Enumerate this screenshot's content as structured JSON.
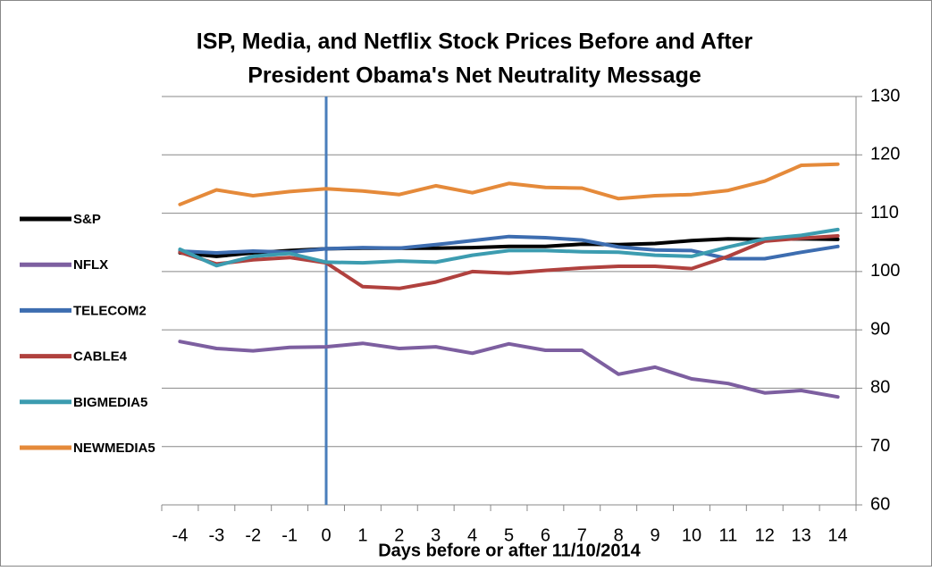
{
  "chart_data": {
    "type": "line",
    "title": [
      "ISP, Media, and Netflix Stock Prices Before and After",
      "President Obama's Net Neutrality Message"
    ],
    "x_label": "Days before or after 11/10/2014",
    "categories": [
      -4,
      -3,
      -2,
      -1,
      0,
      1,
      2,
      3,
      4,
      5,
      6,
      7,
      8,
      9,
      10,
      11,
      12,
      13,
      14
    ],
    "series": [
      {
        "name": "S&P",
        "color": "#000000",
        "values": [
          103.2,
          102.6,
          103.2,
          103.6,
          103.9,
          104.0,
          104.0,
          104.0,
          104.1,
          104.3,
          104.3,
          104.7,
          104.6,
          104.8,
          105.3,
          105.6,
          105.5,
          105.6,
          105.5
        ]
      },
      {
        "name": "NFLX",
        "color": "#7d5fa0",
        "values": [
          88.0,
          86.8,
          86.4,
          87.0,
          87.1,
          87.7,
          86.8,
          87.1,
          86.0,
          87.6,
          86.5,
          86.5,
          82.4,
          83.6,
          81.6,
          80.8,
          79.2,
          79.6,
          78.5
        ]
      },
      {
        "name": "TELECOM2",
        "color": "#3d6db0",
        "values": [
          103.5,
          103.2,
          103.5,
          103.3,
          103.9,
          104.1,
          104.0,
          104.6,
          105.3,
          106.0,
          105.8,
          105.4,
          104.2,
          103.7,
          103.6,
          102.2,
          102.2,
          103.3,
          104.3
        ]
      },
      {
        "name": "CABLE4",
        "color": "#b0413e",
        "values": [
          103.3,
          101.3,
          102.0,
          102.4,
          101.5,
          97.4,
          97.1,
          98.2,
          100.0,
          99.7,
          100.2,
          100.6,
          100.9,
          100.9,
          100.5,
          102.6,
          105.2,
          105.7,
          106.1
        ]
      },
      {
        "name": "BIGMEDIA5",
        "color": "#3c9cb0",
        "values": [
          103.8,
          101.0,
          102.6,
          103.1,
          101.6,
          101.5,
          101.8,
          101.6,
          102.8,
          103.6,
          103.6,
          103.4,
          103.3,
          102.8,
          102.6,
          104.2,
          105.6,
          106.2,
          107.2
        ]
      },
      {
        "name": "NEWMEDIA5",
        "color": "#e58a3a",
        "values": [
          111.5,
          114.0,
          113.0,
          113.7,
          114.2,
          113.8,
          113.2,
          114.7,
          113.5,
          115.1,
          114.4,
          114.3,
          112.5,
          113.0,
          113.2,
          113.9,
          115.5,
          118.2,
          118.4
        ]
      }
    ],
    "ylim": [
      60,
      130
    ],
    "yticks": [
      60,
      70,
      80,
      90,
      100,
      110,
      120,
      130
    ],
    "grid": true,
    "y_axis_side": "right",
    "legend": "left",
    "vline": 0,
    "vline_color": "#4a7ebb"
  }
}
